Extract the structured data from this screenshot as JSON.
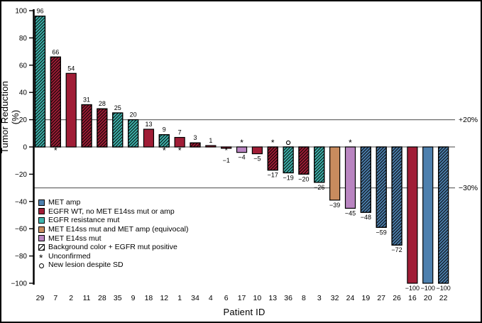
{
  "figure": {
    "background": "#ffffff",
    "border_color": "#000000"
  },
  "colors": {
    "met_amp": "#4d80ae",
    "egfr_wt": "#a01d36",
    "egfr_resistance_mut": "#3fb5ae",
    "met_e14ss_met_amp": "#c88b5e",
    "met_e14ss": "#b985c1",
    "reference_line": "#6b6b6b",
    "axis": "#000000"
  },
  "chart_data": {
    "type": "bar",
    "title": "",
    "xlabel": "Patient ID",
    "ylabel": "Tumor Reduction (%)",
    "ylim": [
      -100,
      100
    ],
    "yticks": [
      100,
      80,
      60,
      40,
      20,
      0,
      -20,
      -40,
      -60,
      -80,
      -100
    ],
    "grid": false,
    "legend_position": "inside-left",
    "reference_lines": [
      {
        "value": 20,
        "label": "+20%"
      },
      {
        "value": -30,
        "label": "−30%"
      }
    ],
    "bars": [
      {
        "patient_id": "29",
        "value": 96,
        "group": "egfr_resistance_mut",
        "hatched": true,
        "marker": null
      },
      {
        "patient_id": "7",
        "value": 66,
        "group": "egfr_wt",
        "hatched": true,
        "marker": "unconfirmed",
        "marker_pos": "below_axis"
      },
      {
        "patient_id": "2",
        "value": 54,
        "group": "egfr_wt",
        "hatched": false,
        "marker": null
      },
      {
        "patient_id": "11",
        "value": 31,
        "group": "egfr_wt",
        "hatched": true,
        "marker": null
      },
      {
        "patient_id": "28",
        "value": 28,
        "group": "egfr_wt",
        "hatched": true,
        "marker": null
      },
      {
        "patient_id": "35",
        "value": 25,
        "group": "egfr_resistance_mut",
        "hatched": true,
        "marker": null
      },
      {
        "patient_id": "9",
        "value": 20,
        "group": "egfr_resistance_mut",
        "hatched": true,
        "marker": null
      },
      {
        "patient_id": "18",
        "value": 13,
        "group": "egfr_wt",
        "hatched": false,
        "marker": null
      },
      {
        "patient_id": "12",
        "value": 9,
        "group": "egfr_resistance_mut",
        "hatched": true,
        "marker": "unconfirmed",
        "marker_pos": "below_axis"
      },
      {
        "patient_id": "1",
        "value": 7,
        "group": "egfr_wt",
        "hatched": false,
        "marker": "unconfirmed",
        "marker_pos": "below_axis"
      },
      {
        "patient_id": "34",
        "value": 3,
        "group": "egfr_wt",
        "hatched": true,
        "marker": null
      },
      {
        "patient_id": "4",
        "value": 1,
        "group": "egfr_wt",
        "hatched": false,
        "marker": null
      },
      {
        "patient_id": "6",
        "value": -1,
        "group": "egfr_wt",
        "hatched": false,
        "marker": "unconfirmed",
        "marker_pos": "below_bar"
      },
      {
        "patient_id": "17",
        "value": -4,
        "group": "met_e14ss",
        "hatched": false,
        "marker": "unconfirmed",
        "marker_pos": "above_axis"
      },
      {
        "patient_id": "10",
        "value": -5,
        "group": "egfr_wt",
        "hatched": false,
        "marker": null
      },
      {
        "patient_id": "13",
        "value": -17,
        "group": "egfr_wt",
        "hatched": true,
        "marker": "unconfirmed",
        "marker_pos": "above_axis"
      },
      {
        "patient_id": "36",
        "value": -19,
        "group": "egfr_resistance_mut",
        "hatched": true,
        "marker": "new_lesion",
        "marker_pos": "above_axis"
      },
      {
        "patient_id": "8",
        "value": -20,
        "group": "egfr_wt",
        "hatched": true,
        "marker": null
      },
      {
        "patient_id": "3",
        "value": -26,
        "group": "egfr_resistance_mut",
        "hatched": true,
        "marker": null
      },
      {
        "patient_id": "32",
        "value": -39,
        "group": "met_e14ss_met_amp",
        "hatched": false,
        "marker": null
      },
      {
        "patient_id": "24",
        "value": -45,
        "group": "met_e14ss",
        "hatched": false,
        "marker": "unconfirmed",
        "marker_pos": "above_axis"
      },
      {
        "patient_id": "19",
        "value": -48,
        "group": "met_amp",
        "hatched": true,
        "marker": null
      },
      {
        "patient_id": "27",
        "value": -59,
        "group": "met_amp",
        "hatched": true,
        "marker": null
      },
      {
        "patient_id": "26",
        "value": -72,
        "group": "met_amp",
        "hatched": true,
        "marker": null
      },
      {
        "patient_id": "16",
        "value": -100,
        "group": "egfr_wt",
        "hatched": false,
        "marker": null
      },
      {
        "patient_id": "20",
        "value": -100,
        "group": "met_amp",
        "hatched": false,
        "marker": null
      },
      {
        "patient_id": "22",
        "value": -100,
        "group": "met_amp",
        "hatched": true,
        "marker": null
      }
    ],
    "legend": [
      {
        "swatch": "met_amp",
        "label": "MET amp"
      },
      {
        "swatch": "egfr_wt",
        "label": "EGFR WT, no MET E14ss mut or amp"
      },
      {
        "swatch": "egfr_resistance_mut",
        "label": "EGFR resistance mut"
      },
      {
        "swatch": "met_e14ss_met_amp",
        "label": "MET E14ss mut and MET amp (equivocal)"
      },
      {
        "swatch": "met_e14ss",
        "label": "MET E14ss mut"
      },
      {
        "swatch": "hatch",
        "label": "Background color + EGFR mut positive"
      },
      {
        "swatch": "asterisk",
        "label": "Unconfirmed"
      },
      {
        "swatch": "circle",
        "label": "New lesion despite SD"
      }
    ]
  }
}
